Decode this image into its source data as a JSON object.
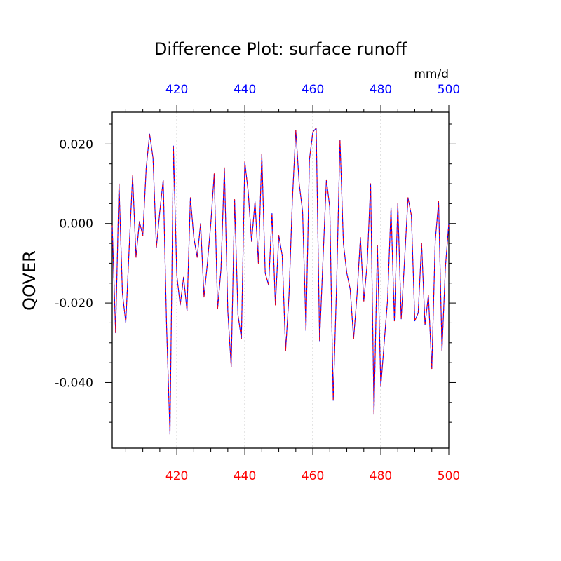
{
  "chart_data": {
    "type": "line",
    "title": "Difference Plot: surface runoff",
    "units": "mm/d",
    "ylabel": "QOVER",
    "xlim": [
      401,
      500
    ],
    "ylim": [
      -0.0565,
      0.028
    ],
    "y_ticks": [
      0.02,
      0.0,
      -0.02,
      -0.04
    ],
    "y_tick_labels": [
      "0.020",
      "0.000",
      "-0.020",
      "-0.040"
    ],
    "x_ticks": [
      420,
      440,
      460,
      480,
      500
    ],
    "x_tick_labels_bottom": [
      "420",
      "440",
      "460",
      "480",
      "500"
    ],
    "x_tick_labels_top": [
      "420",
      "440",
      "460",
      "480",
      "500"
    ],
    "bottom_axis_color": "#ff0000",
    "top_axis_color": "#0000ff",
    "gridlines": "vertical dotted at major x ticks",
    "series": [
      {
        "name": "series-blue",
        "color": "#0000ff",
        "style": "solid",
        "x": [
          401,
          402,
          403,
          404,
          405,
          406,
          407,
          408,
          409,
          410,
          411,
          412,
          413,
          414,
          415,
          416,
          417,
          418,
          419,
          420,
          421,
          422,
          423,
          424,
          425,
          426,
          427,
          428,
          429,
          430,
          431,
          432,
          433,
          434,
          435,
          436,
          437,
          438,
          439,
          440,
          441,
          442,
          443,
          444,
          445,
          446,
          447,
          448,
          449,
          450,
          451,
          452,
          453,
          454,
          455,
          456,
          457,
          458,
          459,
          460,
          461,
          462,
          463,
          464,
          465,
          466,
          467,
          468,
          469,
          470,
          471,
          472,
          473,
          474,
          475,
          476,
          477,
          478,
          479,
          480,
          481,
          482,
          483,
          484,
          485,
          486,
          487,
          488,
          489,
          490,
          491,
          492,
          493,
          494,
          495,
          496,
          497,
          498,
          499,
          500
        ],
        "y": [
          -0.0005,
          -0.0275,
          0.01,
          -0.0175,
          -0.025,
          -0.006,
          0.012,
          -0.0085,
          0.0005,
          -0.003,
          0.014,
          0.0225,
          0.0165,
          -0.006,
          0.003,
          0.011,
          -0.026,
          -0.053,
          0.0195,
          -0.013,
          -0.0205,
          -0.0135,
          -0.022,
          0.0065,
          -0.0035,
          -0.0085,
          0.0,
          -0.0185,
          -0.01,
          0.0,
          0.0125,
          -0.0215,
          -0.0115,
          0.014,
          -0.022,
          -0.036,
          0.006,
          -0.023,
          -0.029,
          0.0155,
          0.008,
          -0.0045,
          0.0055,
          -0.01,
          0.0175,
          -0.0125,
          -0.0155,
          0.0025,
          -0.0205,
          -0.003,
          -0.008,
          -0.032,
          -0.018,
          0.006,
          0.0235,
          0.01,
          0.003,
          -0.027,
          0.016,
          0.023,
          0.024,
          -0.0295,
          -0.009,
          0.011,
          0.004,
          -0.0445,
          -0.0155,
          0.021,
          -0.005,
          -0.0125,
          -0.0165,
          -0.029,
          -0.018,
          -0.0035,
          -0.0195,
          -0.01,
          0.01,
          -0.048,
          -0.0055,
          -0.041,
          -0.03,
          -0.019,
          0.004,
          -0.0245,
          0.005,
          -0.024,
          -0.009,
          0.0065,
          0.002,
          -0.0245,
          -0.0225,
          -0.005,
          -0.0255,
          -0.018,
          -0.0365,
          -0.0045,
          0.0055,
          -0.032,
          -0.011,
          0.0
        ]
      },
      {
        "name": "series-red",
        "color": "#ff0000",
        "style": "dashed",
        "same_as": "series-blue"
      }
    ]
  }
}
